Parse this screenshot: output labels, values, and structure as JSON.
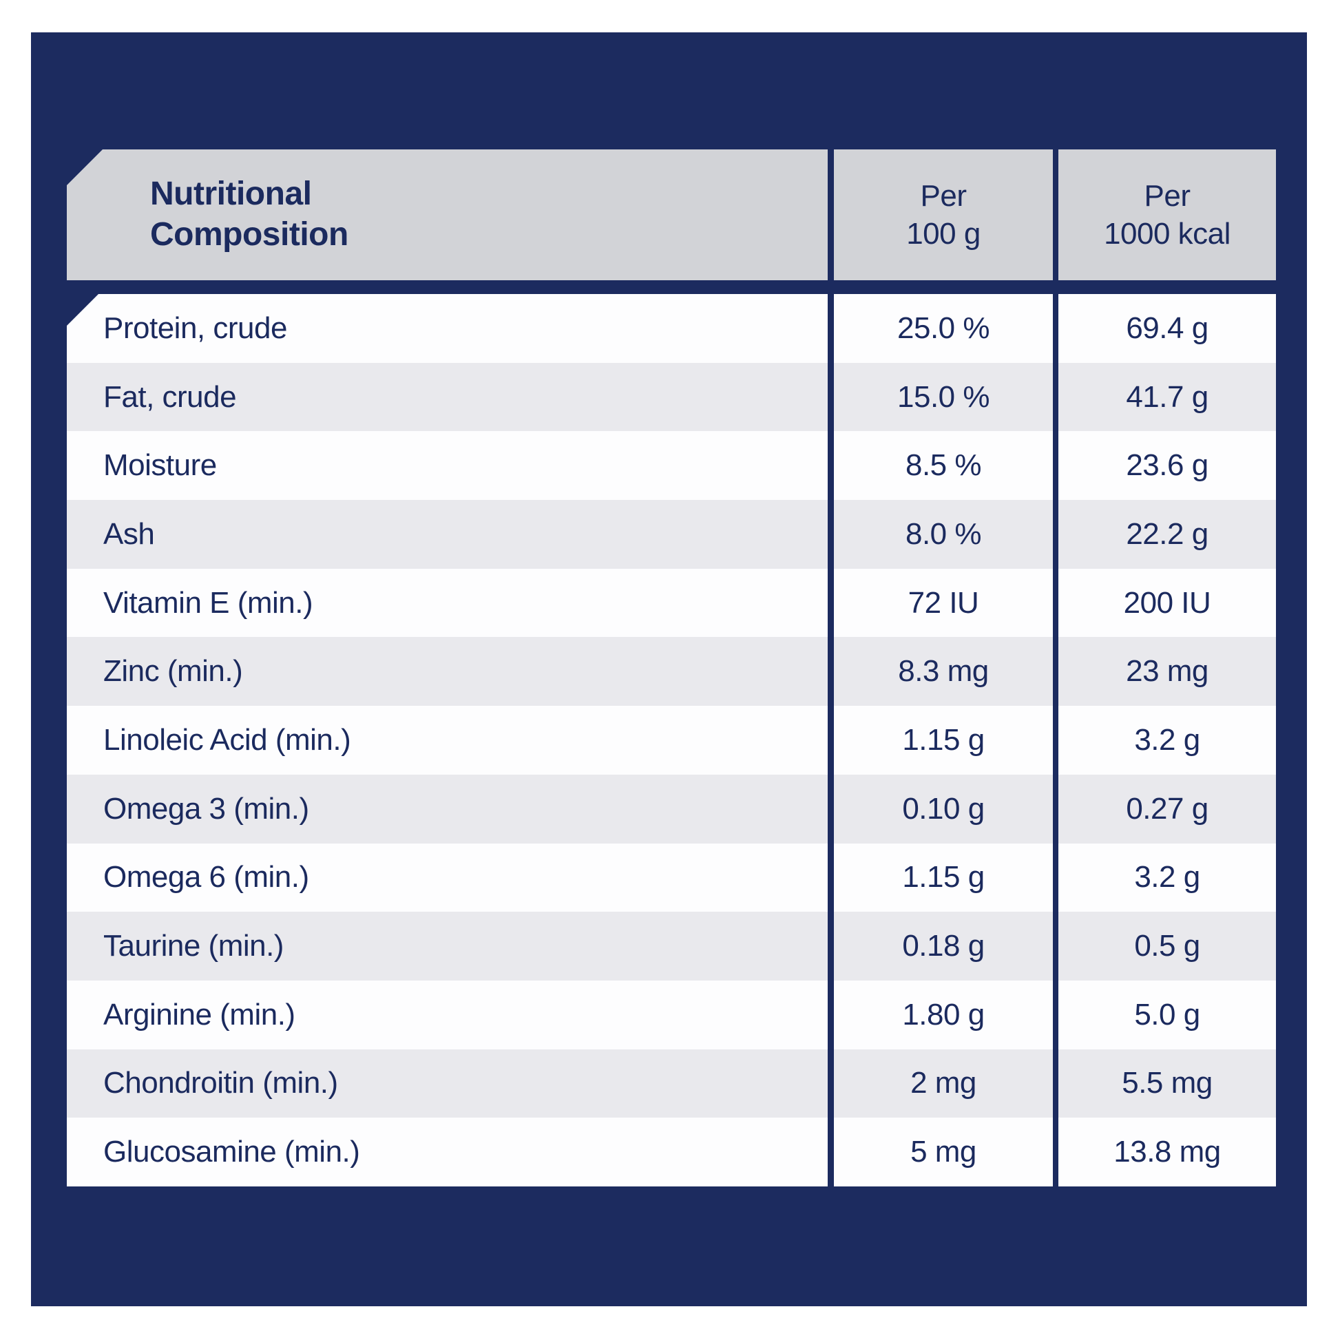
{
  "header": {
    "title_line1": "Nutritional",
    "title_line2": "Composition",
    "per_100g": [
      "Per",
      "100 g"
    ],
    "per_1000kcal": [
      "Per",
      "1000 kcal"
    ]
  },
  "rows": [
    {
      "name": "Protein, crude",
      "per_100g": "25.0 %",
      "per_1000kcal": "69.4 g"
    },
    {
      "name": "Fat, crude",
      "per_100g": "15.0 %",
      "per_1000kcal": "41.7 g"
    },
    {
      "name": "Moisture",
      "per_100g": "8.5 %",
      "per_1000kcal": "23.6 g"
    },
    {
      "name": "Ash",
      "per_100g": "8.0 %",
      "per_1000kcal": "22.2 g"
    },
    {
      "name": "Vitamin E (min.)",
      "per_100g": "72 IU",
      "per_1000kcal": "200 IU"
    },
    {
      "name": "Zinc (min.)",
      "per_100g": "8.3 mg",
      "per_1000kcal": "23 mg"
    },
    {
      "name": "Linoleic Acid (min.)",
      "per_100g": "1.15 g",
      "per_1000kcal": "3.2 g"
    },
    {
      "name": "Omega 3 (min.)",
      "per_100g": "0.10 g",
      "per_1000kcal": "0.27 g"
    },
    {
      "name": "Omega 6 (min.)",
      "per_100g": "1.15 g",
      "per_1000kcal": "3.2 g"
    },
    {
      "name": "Taurine (min.)",
      "per_100g": "0.18 g",
      "per_1000kcal": "0.5 g"
    },
    {
      "name": "Arginine (min.)",
      "per_100g": "1.80 g",
      "per_1000kcal": "5.0 g"
    },
    {
      "name": "Chondroitin (min.)",
      "per_100g": "2 mg",
      "per_1000kcal": "5.5 mg"
    },
    {
      "name": "Glucosamine (min.)",
      "per_100g": "5 mg",
      "per_1000kcal": "13.8 mg"
    }
  ],
  "colors": {
    "page_background": "#ffffff",
    "panel_navy": "#1c2b5f",
    "header_gray": "#d2d3d7",
    "row_gray": "#e9e9ed",
    "row_white": "#fdfdfe",
    "text_navy": "#1b2a5e"
  }
}
